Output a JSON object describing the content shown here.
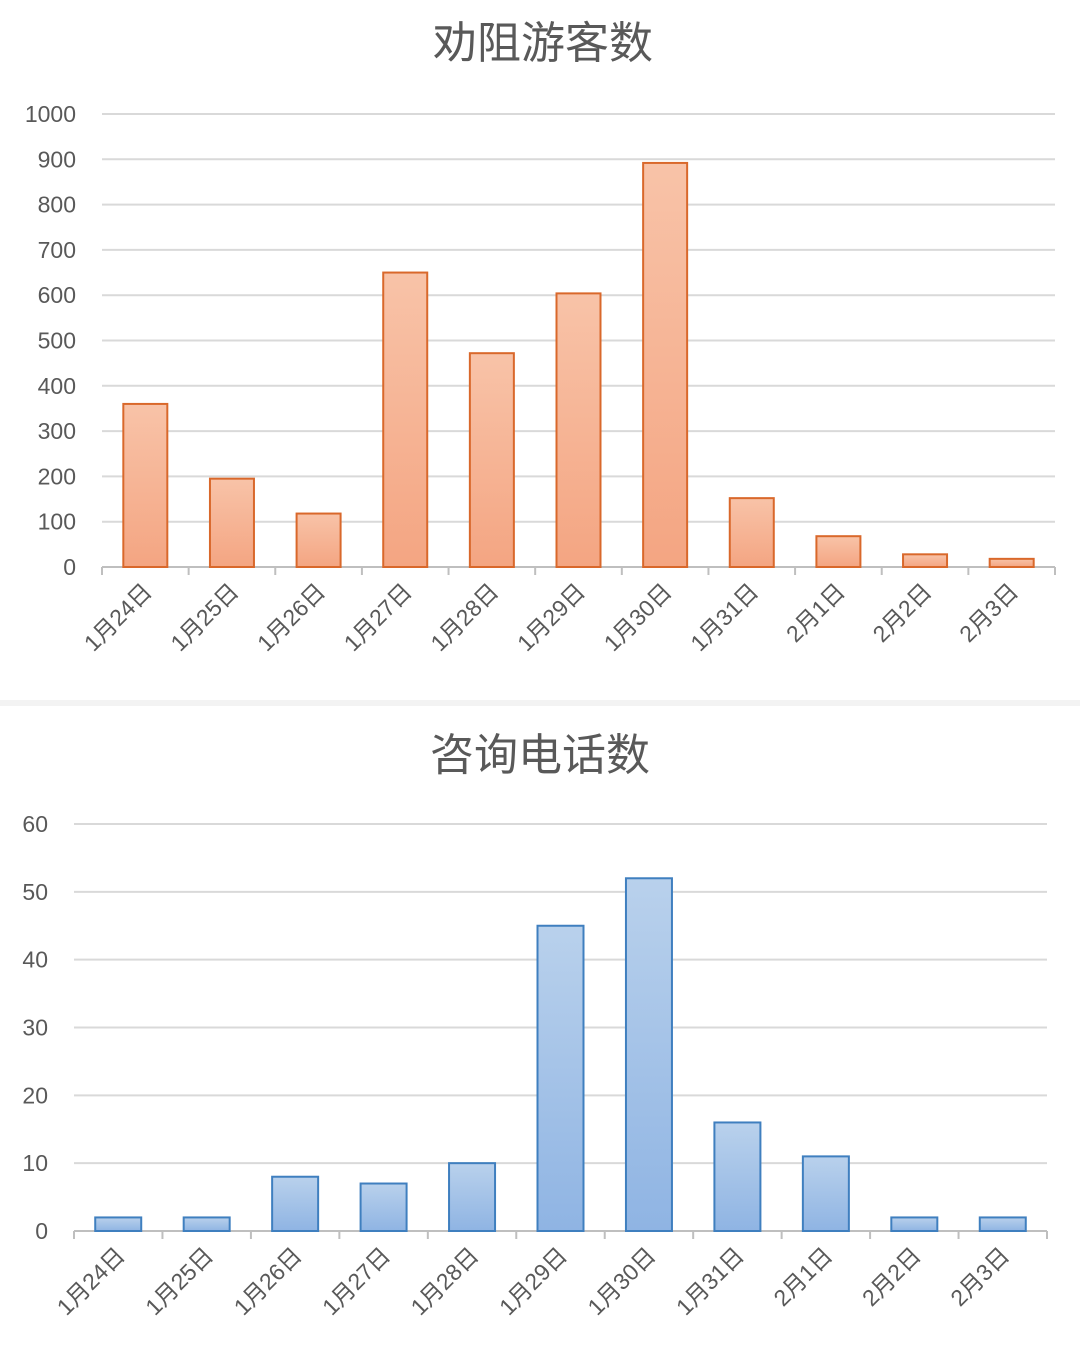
{
  "chart_data": [
    {
      "type": "bar",
      "title": "劝阻游客数",
      "categories": [
        "1月24日",
        "1月25日",
        "1月26日",
        "1月27日",
        "1月28日",
        "1月29日",
        "1月30日",
        "1月31日",
        "2月1日",
        "2月2日",
        "2月3日"
      ],
      "values": [
        360,
        195,
        118,
        650,
        472,
        604,
        892,
        152,
        68,
        28,
        18
      ],
      "ylim": [
        0,
        1000
      ],
      "yticks": [
        0,
        100,
        200,
        300,
        400,
        500,
        600,
        700,
        800,
        900,
        1000
      ],
      "grid": true,
      "colors": {
        "fill_top": "#f8c3a8",
        "fill_bottom": "#f4a582",
        "stroke": "#d9682b"
      }
    },
    {
      "type": "bar",
      "title": "咨询电话数",
      "categories": [
        "1月24日",
        "1月25日",
        "1月26日",
        "1月27日",
        "1月28日",
        "1月29日",
        "1月30日",
        "1月31日",
        "2月1日",
        "2月2日",
        "2月3日"
      ],
      "values": [
        2,
        2,
        8,
        7,
        10,
        45,
        52,
        16,
        11,
        2,
        2
      ],
      "ylim": [
        0,
        60
      ],
      "yticks": [
        0,
        10,
        20,
        30,
        40,
        50,
        60
      ],
      "grid": true,
      "colors": {
        "fill_top": "#b9d1ec",
        "fill_bottom": "#8fb4e3",
        "stroke": "#3f7fbf"
      }
    }
  ]
}
